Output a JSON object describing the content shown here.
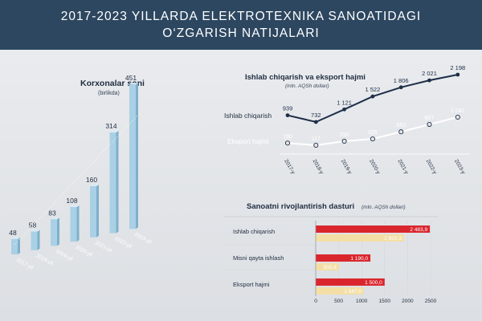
{
  "header": {
    "line1": "2017-2023 YILLARDA ELEKTROTEXNIKA SANOATIDAGI",
    "line2": "O‘ZGARISH NATIJALARI"
  },
  "chart_data": [
    {
      "type": "bar",
      "title": "Korxonalar soni",
      "subtitle": "(birlikda)",
      "categories": [
        "2017-yil",
        "2018-yil",
        "2019-yil",
        "2020-yil",
        "2021-yil",
        "2022-yil",
        "2023-yil"
      ],
      "values": [
        48,
        58,
        83,
        108,
        160,
        314,
        451
      ],
      "value_labels": [
        "48",
        "58",
        "83",
        "108",
        "160",
        "314",
        "451"
      ],
      "color": "#a9d0e4"
    },
    {
      "type": "line",
      "title": "Ishlab chiqarish va eksport hajmi",
      "subtitle": "(mln. AQSh dollari)",
      "categories": [
        "2017-y",
        "2018-y",
        "2019-y",
        "2020-y",
        "2021-y",
        "2022-y",
        "2023-y"
      ],
      "series": [
        {
          "name": "Ishlab chiqarish",
          "values": [
            939,
            732,
            1121,
            1522,
            1806,
            2021,
            2198
          ],
          "labels": [
            "939",
            "732",
            "1 121",
            "1 522",
            "1 806",
            "2 021",
            "2 198"
          ],
          "color": "#1c2e47"
        },
        {
          "name": "Eksport hajmi",
          "values": [
            190,
            117,
            250,
            326,
            563,
            807,
            1047
          ],
          "labels": [
            "190",
            "117",
            "250",
            "326",
            "563",
            "807",
            "1 047"
          ],
          "color": "#ffffff"
        }
      ]
    },
    {
      "type": "bar",
      "orientation": "horizontal",
      "title": "Sanoatni rivojlantirish dasturi",
      "subtitle": "(mln. AQSh dollari)",
      "categories": [
        "Ishlab chiqarish",
        "Misni qayta ishlash",
        "Eksport hajmi"
      ],
      "series": [
        {
          "values": [
            2483.9,
            1190.0,
            1500.0
          ],
          "labels": [
            "2 483,9",
            "1 190,0",
            "1 500,0"
          ],
          "color": "#d9262d"
        },
        {
          "values": [
            1920.3,
            505.8,
            1047.0
          ],
          "labels": [
            "1 920,3",
            "505,8",
            "1 047,0"
          ],
          "color": "#f3dfa6"
        }
      ],
      "xlim": [
        0,
        2500
      ],
      "xticks": [
        "0",
        "500",
        "1000",
        "1500",
        "2000",
        "2500"
      ]
    }
  ]
}
